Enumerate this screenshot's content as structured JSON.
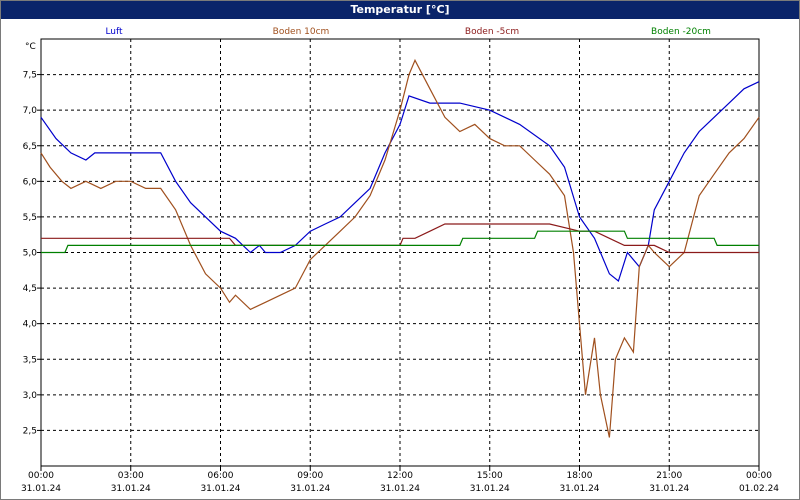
{
  "window": {
    "title": "Temperatur [°C]"
  },
  "chart_data": {
    "type": "line",
    "title": "Temperatur [°C]",
    "ylabel": "°C",
    "ylim": [
      2.0,
      8.0
    ],
    "yticks": [
      "7,5",
      "7,0",
      "6,5",
      "6,0",
      "5,5",
      "5,0",
      "4,5",
      "4,0",
      "3,5",
      "3,0",
      "2,5"
    ],
    "ytick_values": [
      7.5,
      7.0,
      6.5,
      6.0,
      5.5,
      5.0,
      4.5,
      4.0,
      3.5,
      3.0,
      2.5
    ],
    "xlim": [
      0,
      24
    ],
    "xticks": [
      {
        "time": "00:00",
        "date": "31.01.24",
        "hour": 0
      },
      {
        "time": "03:00",
        "date": "31.01.24",
        "hour": 3
      },
      {
        "time": "06:00",
        "date": "31.01.24",
        "hour": 6
      },
      {
        "time": "09:00",
        "date": "31.01.24",
        "hour": 9
      },
      {
        "time": "12:00",
        "date": "31.01.24",
        "hour": 12
      },
      {
        "time": "15:00",
        "date": "31.01.24",
        "hour": 15
      },
      {
        "time": "18:00",
        "date": "31.01.24",
        "hour": 18
      },
      {
        "time": "21:00",
        "date": "31.01.24",
        "hour": 21
      },
      {
        "time": "00:00",
        "date": "01.02.24",
        "hour": 24
      }
    ],
    "grid": true,
    "legend_position": "top",
    "series": [
      {
        "name": "Luft",
        "color": "#0000cc",
        "x": [
          0,
          0.5,
          1,
          1.5,
          1.8,
          2,
          3,
          4,
          4.5,
          5,
          5.5,
          6,
          6.5,
          7,
          7.3,
          7.5,
          8,
          8.5,
          9,
          9.5,
          10,
          10.5,
          11,
          11.5,
          12,
          12.3,
          13,
          14,
          15,
          16,
          17,
          17.5,
          18,
          18.5,
          19,
          19.3,
          19.6,
          20,
          20.3,
          20.5,
          21,
          21.5,
          22,
          22.5,
          23,
          23.5,
          24
        ],
        "y": [
          6.9,
          6.6,
          6.4,
          6.3,
          6.4,
          6.4,
          6.4,
          6.4,
          6.0,
          5.7,
          5.5,
          5.3,
          5.2,
          5.0,
          5.1,
          5.0,
          5.0,
          5.1,
          5.3,
          5.4,
          5.5,
          5.7,
          5.9,
          6.4,
          6.8,
          7.2,
          7.1,
          7.1,
          7.0,
          6.8,
          6.5,
          6.2,
          5.5,
          5.2,
          4.7,
          4.6,
          5.0,
          4.8,
          5.1,
          5.6,
          6.0,
          6.4,
          6.7,
          6.9,
          7.1,
          7.3,
          7.4
        ]
      },
      {
        "name": "Boden 10cm",
        "color": "#a0501e",
        "x": [
          0,
          0.3,
          0.7,
          1,
          1.5,
          2,
          2.5,
          3,
          3.5,
          4,
          4.5,
          5,
          5.5,
          6,
          6.3,
          6.5,
          7,
          7.5,
          8,
          8.5,
          9,
          9.5,
          10,
          10.5,
          11,
          11.5,
          12,
          12.3,
          12.5,
          13,
          13.5,
          14,
          14.5,
          15,
          15.5,
          16,
          16.5,
          17,
          17.5,
          17.8,
          18,
          18.2,
          18.5,
          18.7,
          19,
          19.2,
          19.5,
          19.8,
          20,
          20.3,
          20.5,
          21,
          21.5,
          22,
          22.5,
          23,
          23.5,
          24
        ],
        "y": [
          6.4,
          6.2,
          6.0,
          5.9,
          6.0,
          5.9,
          6.0,
          6.0,
          5.9,
          5.9,
          5.6,
          5.1,
          4.7,
          4.5,
          4.3,
          4.4,
          4.2,
          4.3,
          4.4,
          4.5,
          4.9,
          5.1,
          5.3,
          5.5,
          5.8,
          6.3,
          7.0,
          7.5,
          7.7,
          7.3,
          6.9,
          6.7,
          6.8,
          6.6,
          6.5,
          6.5,
          6.3,
          6.1,
          5.8,
          5.0,
          4.0,
          3.0,
          3.8,
          3.0,
          2.4,
          3.5,
          3.8,
          3.6,
          4.8,
          5.1,
          5.0,
          4.8,
          5.0,
          5.8,
          6.1,
          6.4,
          6.6,
          6.9
        ]
      },
      {
        "name": "Boden -5cm",
        "color": "#8b1a1a",
        "x": [
          0,
          6.3,
          6.5,
          12,
          12.1,
          12.5,
          13,
          13.5,
          14,
          15,
          16,
          17,
          18,
          18.5,
          19,
          19.5,
          20,
          20.5,
          21,
          22,
          23,
          24
        ],
        "y": [
          5.2,
          5.2,
          5.1,
          5.1,
          5.2,
          5.2,
          5.3,
          5.4,
          5.4,
          5.4,
          5.4,
          5.4,
          5.3,
          5.3,
          5.2,
          5.1,
          5.1,
          5.1,
          5.0,
          5.0,
          5.0,
          5.0
        ]
      },
      {
        "name": "Boden -20cm",
        "color": "#008000",
        "x": [
          0,
          0.8,
          0.9,
          14,
          14.1,
          16.5,
          16.6,
          19.5,
          19.6,
          22.5,
          22.6,
          24
        ],
        "y": [
          5.0,
          5.0,
          5.1,
          5.1,
          5.2,
          5.2,
          5.3,
          5.3,
          5.2,
          5.2,
          5.1,
          5.1
        ]
      }
    ]
  }
}
